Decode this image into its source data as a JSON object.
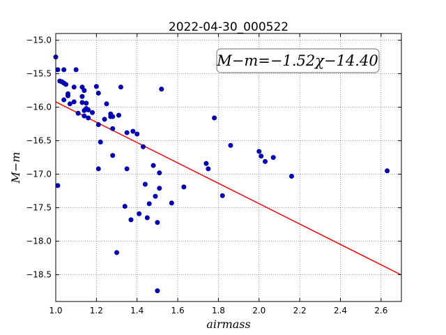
{
  "chart_data": {
    "type": "scatter",
    "title": "2022-04-30_000522",
    "xlabel": "airmass",
    "ylabel": "M−m",
    "xlim": [
      1.0,
      2.7
    ],
    "ylim": [
      -18.9,
      -14.9
    ],
    "xticks": [
      1.0,
      1.2,
      1.4,
      1.6,
      1.8,
      2.0,
      2.2,
      2.4,
      2.6
    ],
    "yticks": [
      -15.0,
      -15.5,
      -16.0,
      -16.5,
      -17.0,
      -17.5,
      -18.0,
      -18.5
    ],
    "xtick_labels": [
      "1.0",
      "1.2",
      "1.4",
      "1.6",
      "1.8",
      "2.0",
      "2.2",
      "2.4",
      "2.6"
    ],
    "ytick_labels": [
      "−15.0",
      "−15.5",
      "−16.0",
      "−16.5",
      "−17.0",
      "−17.5",
      "−18.0",
      "−18.5"
    ],
    "grid": true,
    "annotation": "M−m=−1.52χ−14.40",
    "annotation_placement": "top-right",
    "fit_line": {
      "slope": -1.52,
      "intercept": -14.4,
      "color": "#ff0000"
    },
    "marker_color": "#0000cc",
    "points": [
      [
        1.0,
        -15.25
      ],
      [
        1.01,
        -17.17
      ],
      [
        1.01,
        -15.44
      ],
      [
        1.02,
        -15.61
      ],
      [
        1.03,
        -15.62
      ],
      [
        1.04,
        -15.44
      ],
      [
        1.04,
        -15.64
      ],
      [
        1.05,
        -15.66
      ],
      [
        1.04,
        -15.89
      ],
      [
        1.06,
        -15.83
      ],
      [
        1.06,
        -15.8
      ],
      [
        1.07,
        -15.95
      ],
      [
        1.09,
        -15.92
      ],
      [
        1.09,
        -15.7
      ],
      [
        1.1,
        -15.44
      ],
      [
        1.11,
        -16.09
      ],
      [
        1.13,
        -15.93
      ],
      [
        1.13,
        -15.7
      ],
      [
        1.14,
        -15.75
      ],
      [
        1.13,
        -15.84
      ],
      [
        1.14,
        -16.05
      ],
      [
        1.14,
        -16.13
      ],
      [
        1.15,
        -16.02
      ],
      [
        1.15,
        -15.94
      ],
      [
        1.16,
        -16.04
      ],
      [
        1.16,
        -16.16
      ],
      [
        1.18,
        -16.08
      ],
      [
        1.2,
        -15.69
      ],
      [
        1.21,
        -15.79
      ],
      [
        1.21,
        -16.26
      ],
      [
        1.21,
        -16.92
      ],
      [
        1.22,
        -16.52
      ],
      [
        1.24,
        -16.18
      ],
      [
        1.25,
        -15.95
      ],
      [
        1.27,
        -16.1
      ],
      [
        1.27,
        -16.14
      ],
      [
        1.28,
        -16.14
      ],
      [
        1.28,
        -16.32
      ],
      [
        1.28,
        -16.72
      ],
      [
        1.3,
        -18.17
      ],
      [
        1.31,
        -16.12
      ],
      [
        1.32,
        -15.7
      ],
      [
        1.34,
        -17.48
      ],
      [
        1.35,
        -16.92
      ],
      [
        1.35,
        -16.38
      ],
      [
        1.37,
        -17.68
      ],
      [
        1.38,
        -16.36
      ],
      [
        1.4,
        -16.4
      ],
      [
        1.41,
        -17.59
      ],
      [
        1.43,
        -16.59
      ],
      [
        1.44,
        -17.15
      ],
      [
        1.45,
        -17.65
      ],
      [
        1.46,
        -17.44
      ],
      [
        1.48,
        -16.87
      ],
      [
        1.49,
        -17.33
      ],
      [
        1.5,
        -17.72
      ],
      [
        1.5,
        -18.74
      ],
      [
        1.51,
        -17.21
      ],
      [
        1.51,
        -16.98
      ],
      [
        1.52,
        -15.73
      ],
      [
        1.57,
        -17.43
      ],
      [
        1.63,
        -17.19
      ],
      [
        1.74,
        -16.84
      ],
      [
        1.75,
        -16.92
      ],
      [
        1.78,
        -16.16
      ],
      [
        1.82,
        -17.32
      ],
      [
        1.86,
        -16.57
      ],
      [
        2.0,
        -16.66
      ],
      [
        2.01,
        -16.73
      ],
      [
        2.03,
        -16.81
      ],
      [
        2.07,
        -16.75
      ],
      [
        2.16,
        -17.03
      ],
      [
        2.63,
        -16.95
      ]
    ]
  }
}
